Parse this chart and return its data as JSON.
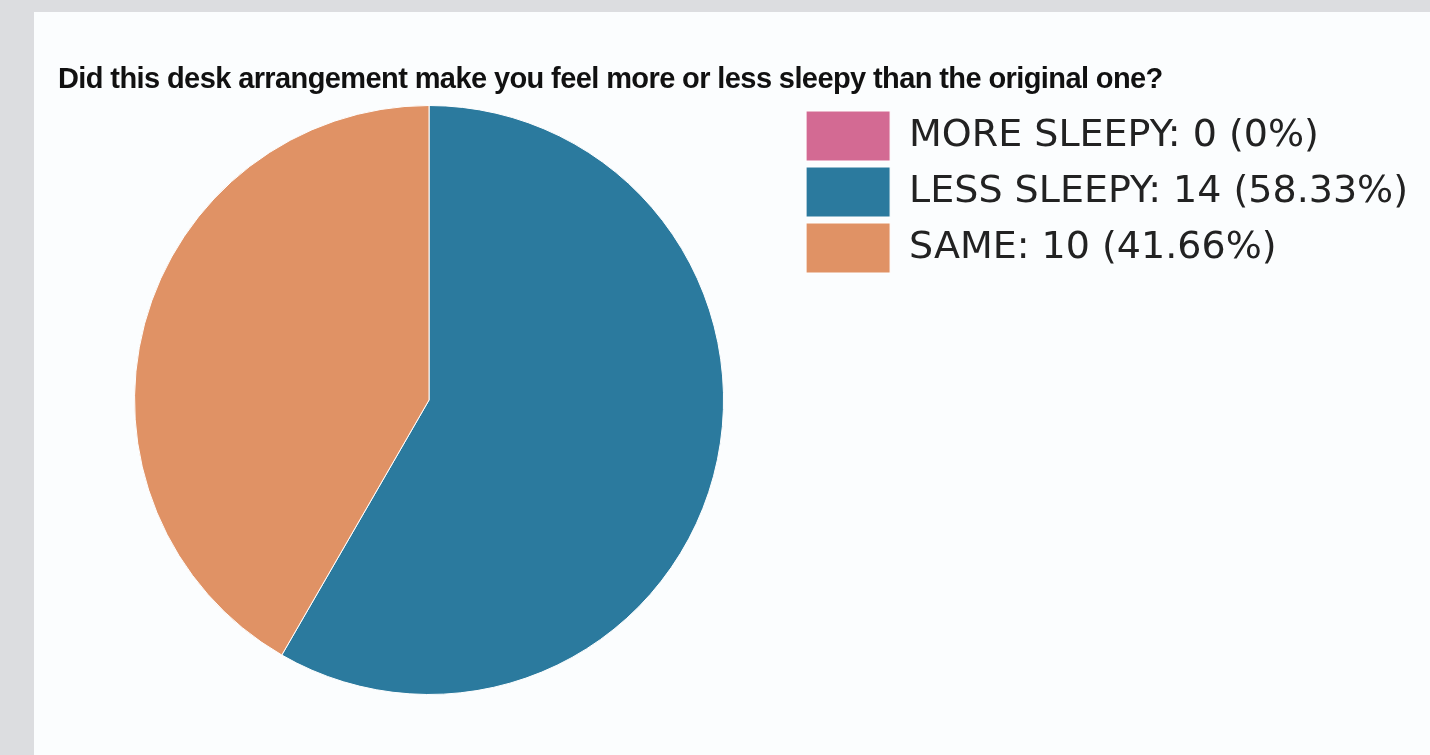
{
  "chart_data": {
    "type": "pie",
    "title": "Did this desk arrangement make you feel more or less sleepy than the original one?",
    "categories": [
      "MORE SLEEPY: 0 (0%)",
      "LESS SLEEPY: 14 (58.33%)",
      "SAME: 10 (41.66%)"
    ],
    "values": [
      0,
      14,
      10
    ],
    "colors": [
      "#d36a93",
      "#2b7a9e",
      "#e09265"
    ],
    "legend": "top right"
  }
}
